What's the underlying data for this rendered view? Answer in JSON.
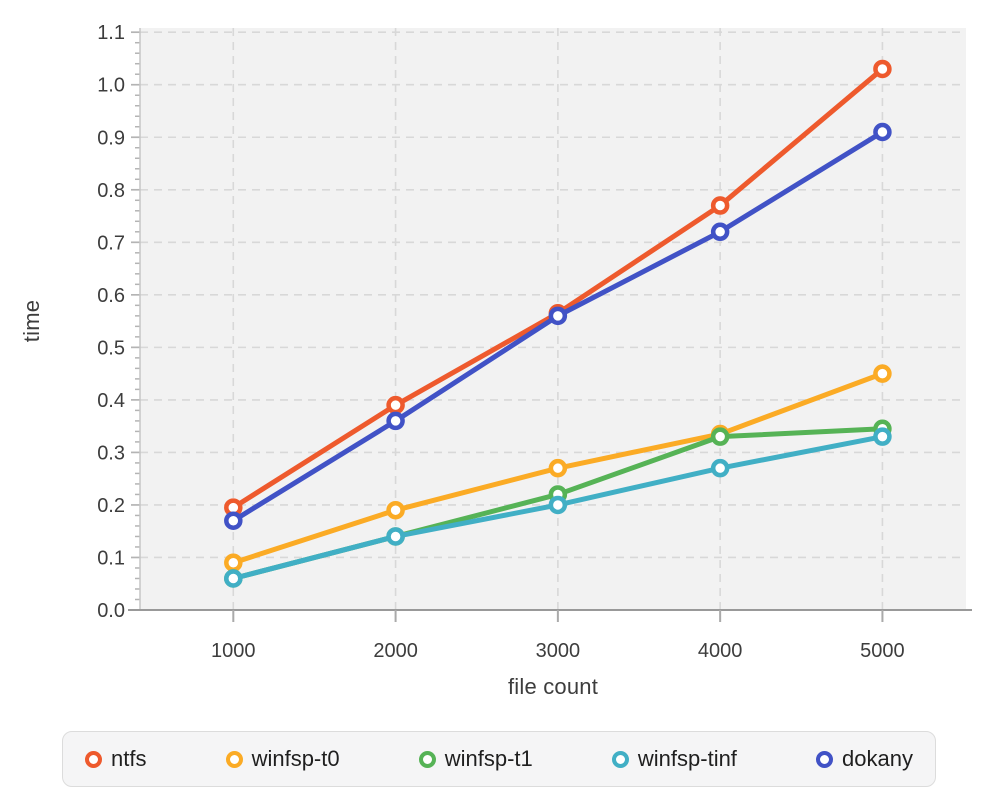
{
  "chart_data": {
    "type": "line",
    "x": [
      1000,
      2000,
      3000,
      4000,
      5000
    ],
    "x_ticks": [
      1000,
      2000,
      3000,
      4000,
      5000
    ],
    "y_ticks": [
      0.0,
      0.1,
      0.2,
      0.3,
      0.4,
      0.5,
      0.6,
      0.7,
      0.8,
      0.9,
      1.0,
      1.1
    ],
    "y_minor_step": 0.02,
    "series": [
      {
        "name": "ntfs",
        "color": "#ee5a2d",
        "values": [
          0.195,
          0.39,
          0.565,
          0.77,
          1.03
        ]
      },
      {
        "name": "winfsp-t0",
        "color": "#fbab25",
        "values": [
          0.09,
          0.19,
          0.27,
          0.335,
          0.45
        ]
      },
      {
        "name": "winfsp-t1",
        "color": "#56b356",
        "values": [
          0.06,
          0.14,
          0.22,
          0.33,
          0.345
        ]
      },
      {
        "name": "winfsp-tinf",
        "color": "#41afc5",
        "values": [
          0.06,
          0.14,
          0.2,
          0.27,
          0.33
        ]
      },
      {
        "name": "dokany",
        "color": "#4152c6",
        "values": [
          0.17,
          0.36,
          0.56,
          0.72,
          0.91
        ]
      }
    ],
    "title": "",
    "xlabel": "file count",
    "ylabel": "time",
    "xlim": [
      425,
      5515
    ],
    "ylim": [
      0,
      1.108
    ],
    "grid": "dashed",
    "legend_position": "bottom",
    "plot_bg_color": "#f2f2f2",
    "grid_color": "#d8d8d8",
    "tick_label_color": "#3d3d3d",
    "marker_style": "open-circle"
  }
}
